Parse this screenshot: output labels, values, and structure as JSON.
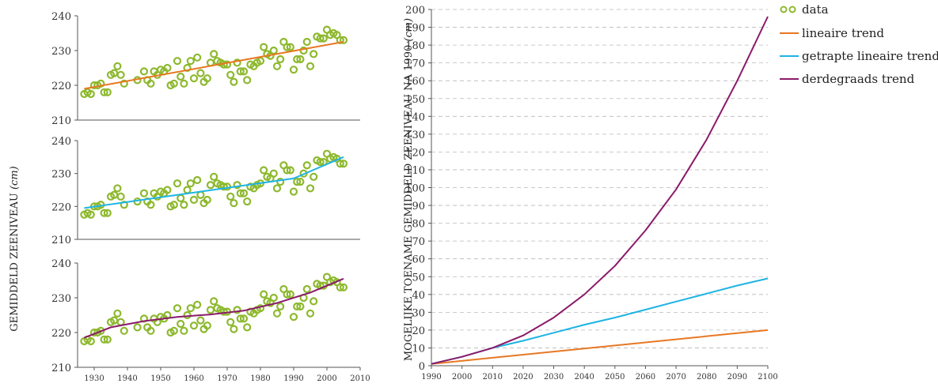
{
  "chart_data": [
    {
      "type": "scatter",
      "panel": "top",
      "ylim": [
        210,
        240
      ],
      "xlim": [
        1925,
        2010
      ],
      "yticks": [
        210,
        220,
        230,
        240
      ],
      "xticks": [],
      "series": [
        {
          "kind": "trend",
          "color": "#E87722",
          "x": [
            1927,
            2005
          ],
          "y": [
            219.0,
            232.5
          ]
        }
      ]
    },
    {
      "type": "scatter",
      "panel": "middle",
      "ylim": [
        210,
        240
      ],
      "xlim": [
        1925,
        2010
      ],
      "yticks": [
        210,
        220,
        230,
        240
      ],
      "xticks": [],
      "series": [
        {
          "kind": "trend",
          "color": "#1EB4E4",
          "x": [
            1927,
            1990,
            2005
          ],
          "y": [
            219.5,
            228.5,
            235.0
          ]
        }
      ]
    },
    {
      "type": "scatter",
      "panel": "bottom",
      "ylim": [
        210,
        240
      ],
      "xlim": [
        1925,
        2010
      ],
      "yticks": [
        210,
        220,
        230,
        240
      ],
      "xticks": [
        1930,
        1940,
        1950,
        1960,
        1970,
        1980,
        1990,
        2000,
        2010
      ],
      "ylabel_left": "GEMIDDELD ZEENIVEAU (cm)",
      "series": [
        {
          "kind": "trend",
          "color": "#8B1A6B",
          "x": [
            1927,
            1935,
            1945,
            1955,
            1965,
            1975,
            1985,
            1995,
            2005
          ],
          "y": [
            218.5,
            221.5,
            223.3,
            224.5,
            225.2,
            226.3,
            228.5,
            231.5,
            235.5
          ]
        }
      ]
    },
    {
      "type": "line",
      "panel": "right",
      "ylabel": "MOGELIJKE TOENAME GEMIDDELD ZEENIVEAU NA 1990 (cm)",
      "xlim": [
        1990,
        2100
      ],
      "ylim": [
        0,
        200
      ],
      "xticks": [
        1990,
        2000,
        2010,
        2020,
        2030,
        2040,
        2050,
        2060,
        2070,
        2080,
        2090,
        2100
      ],
      "yticks": [
        0,
        10,
        20,
        30,
        40,
        50,
        60,
        70,
        80,
        90,
        100,
        110,
        120,
        130,
        140,
        150,
        160,
        170,
        180,
        190,
        200
      ],
      "grid": "horizontal dashed",
      "series": [
        {
          "name": "lineaire trend",
          "color": "#E87722",
          "x": [
            1990,
            2100
          ],
          "y": [
            1,
            20
          ]
        },
        {
          "name": "getrapte lineaire trend",
          "color": "#1EB4E4",
          "x": [
            1990,
            2000,
            2010,
            2020,
            2030,
            2040,
            2050,
            2060,
            2070,
            2080,
            2090,
            2100
          ],
          "y": [
            1,
            5,
            10,
            14,
            18.5,
            23,
            27,
            31.5,
            36,
            40.5,
            45,
            49
          ]
        },
        {
          "name": "derdegraads trend",
          "color": "#8B1A6B",
          "x": [
            1990,
            2000,
            2010,
            2020,
            2030,
            2040,
            2050,
            2060,
            2070,
            2080,
            2090,
            2100
          ],
          "y": [
            1,
            5,
            10,
            17,
            27,
            40,
            56,
            76,
            99,
            127,
            160,
            196
          ]
        }
      ]
    }
  ],
  "tide_data": {
    "x": [
      1927,
      1928,
      1929,
      1930,
      1931,
      1932,
      1933,
      1934,
      1935,
      1936,
      1937,
      1938,
      1939,
      1943,
      1945,
      1946,
      1947,
      1948,
      1949,
      1950,
      1951,
      1952,
      1953,
      1954,
      1955,
      1956,
      1957,
      1958,
      1959,
      1960,
      1961,
      1962,
      1963,
      1964,
      1965,
      1966,
      1967,
      1968,
      1969,
      1970,
      1971,
      1972,
      1973,
      1974,
      1975,
      1976,
      1977,
      1978,
      1979,
      1980,
      1981,
      1982,
      1983,
      1984,
      1985,
      1986,
      1987,
      1988,
      1989,
      1990,
      1991,
      1992,
      1993,
      1994,
      1995,
      1996,
      1997,
      1998,
      1999,
      2000,
      2001,
      2002,
      2003,
      2004,
      2005
    ],
    "y": [
      217.5,
      218,
      217.5,
      220,
      220,
      220.5,
      218,
      218,
      223,
      223.5,
      225.5,
      223,
      220.5,
      221.5,
      224,
      221.5,
      220.5,
      224,
      223,
      224.5,
      224,
      225,
      220,
      220.5,
      227,
      222.5,
      220.5,
      225,
      227,
      222,
      228,
      223.5,
      221,
      222,
      226.5,
      229,
      227,
      226.5,
      226,
      226,
      223,
      221,
      226.5,
      224,
      224,
      221.5,
      226,
      225.5,
      226.5,
      227,
      231,
      229,
      228.5,
      230,
      225.5,
      227.5,
      232.5,
      231,
      231,
      224.5,
      227.5,
      227.5,
      230,
      232.5,
      225.5,
      229,
      234,
      233.5,
      233.5,
      236,
      234.5,
      235,
      234.5,
      233,
      233
    ]
  },
  "legend": {
    "data_label": "data",
    "data_color": "#8DB92E",
    "items": [
      {
        "label": "lineaire trend",
        "color": "#E87722"
      },
      {
        "label": "getrapte lineaire trend",
        "color": "#1EB4E4"
      },
      {
        "label": "derdegraads trend",
        "color": "#8B1A6B"
      }
    ]
  },
  "text": {
    "left_ylabel_main": "GEMIDDELD ZEENIVEAU ",
    "left_ylabel_unit": "(cm)",
    "right_ylabel_main": "MOGELIJKE TOENAME GEMIDDELD ZEENIVEAU NA 1990 ",
    "right_ylabel_unit": "(cm)"
  }
}
